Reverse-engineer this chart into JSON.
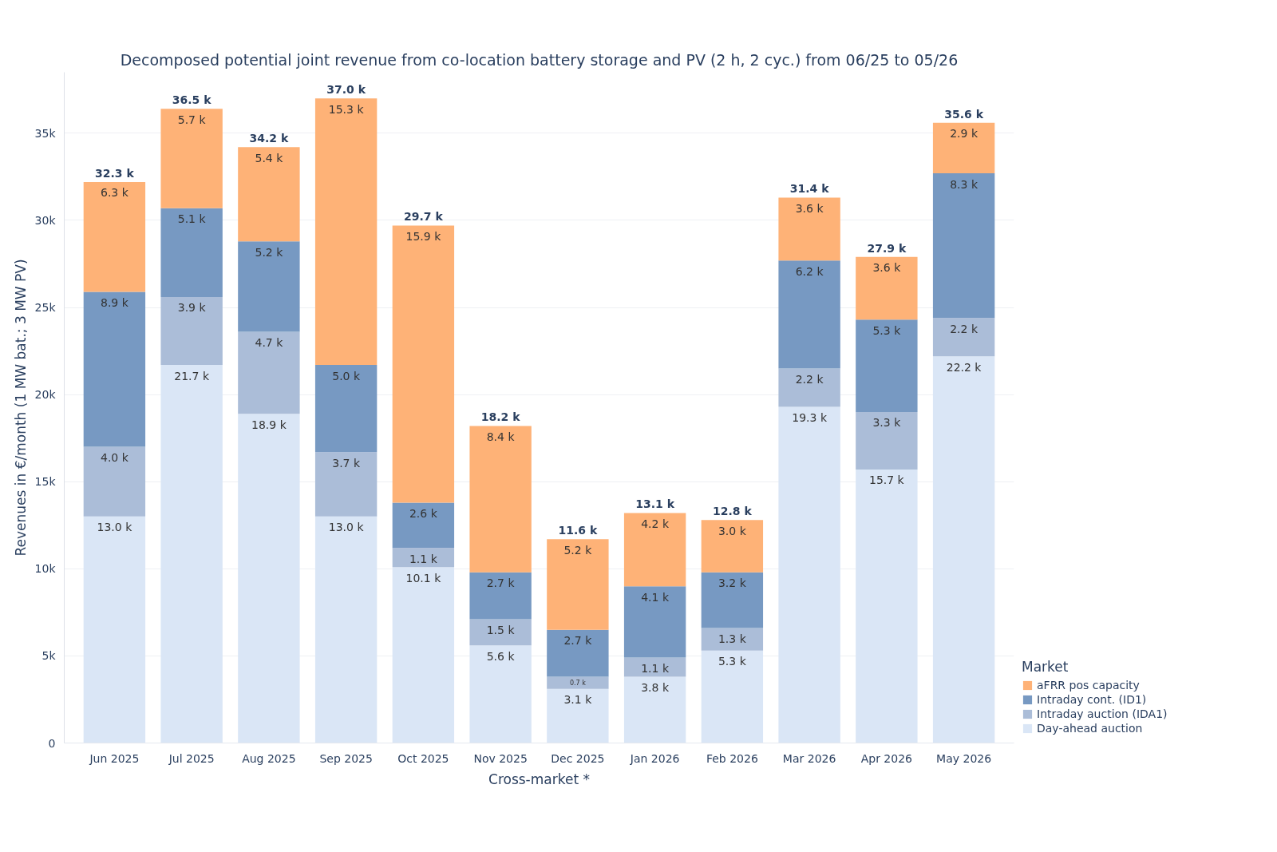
{
  "chart_data": {
    "type": "bar",
    "stacked": true,
    "title": "Decomposed potential joint revenue from co-location battery storage and PV (2 h, 2 cyc.) from 06/25 to 05/26",
    "xlabel": "Cross-market *",
    "ylabel": "Revenues in €/month (1 MW bat.; 3 MW PV)",
    "legend_title": "Market",
    "categories": [
      "Jun 2025",
      "Jul 2025",
      "Aug 2025",
      "Sep 2025",
      "Oct 2025",
      "Nov 2025",
      "Dec 2025",
      "Jan 2026",
      "Feb 2026",
      "Mar 2026",
      "Apr 2026",
      "May 2026"
    ],
    "series": [
      {
        "name": "Day-ahead auction",
        "color": "#dae6f6",
        "values": [
          13000,
          21700,
          18900,
          13000,
          10100,
          5600,
          3100,
          3800,
          5300,
          19300,
          15700,
          22200
        ],
        "value_labels": [
          "13.0 k",
          "21.7 k",
          "18.9 k",
          "13.0 k",
          "10.1 k",
          "5.6 k",
          "3.1 k",
          "3.8 k",
          "5.3 k",
          "19.3 k",
          "15.7 k",
          "22.2 k"
        ]
      },
      {
        "name": "Intraday auction (IDA1)",
        "color": "#abbdd8",
        "values": [
          4000,
          3900,
          4700,
          3700,
          1100,
          1500,
          700,
          1100,
          1300,
          2200,
          3300,
          2200
        ],
        "value_labels": [
          "4.0 k",
          "3.9 k",
          "4.7 k",
          "3.7 k",
          "1.1 k",
          "1.5 k",
          "0.7 k",
          "1.1 k",
          "1.3 k",
          "2.2 k",
          "3.3 k",
          "2.2 k"
        ]
      },
      {
        "name": "Intraday cont. (ID1)",
        "color": "#7799c2",
        "values": [
          8900,
          5100,
          5200,
          5000,
          2600,
          2700,
          2700,
          4100,
          3200,
          6200,
          5300,
          8300
        ],
        "value_labels": [
          "8.9 k",
          "5.1 k",
          "5.2 k",
          "5.0 k",
          "2.6 k",
          "2.7 k",
          "2.7 k",
          "4.1 k",
          "3.2 k",
          "6.2 k",
          "5.3 k",
          "8.3 k"
        ]
      },
      {
        "name": "aFRR pos capacity",
        "color": "#feb277",
        "values": [
          6300,
          5700,
          5400,
          15300,
          15900,
          8400,
          5200,
          4200,
          3000,
          3600,
          3600,
          2900
        ],
        "value_labels": [
          "6.3 k",
          "5.7 k",
          "5.4 k",
          "15.3 k",
          "15.9 k",
          "8.4 k",
          "5.2 k",
          "4.2 k",
          "3.0 k",
          "3.6 k",
          "3.6 k",
          "2.9 k"
        ]
      }
    ],
    "totals": [
      "32.3 k",
      "36.5 k",
      "34.2 k",
      "37.0 k",
      "29.7 k",
      "18.2 k",
      "11.6 k",
      "13.1 k",
      "12.8 k",
      "31.4 k",
      "27.9 k",
      "35.6 k"
    ],
    "ylim": [
      0,
      38500
    ],
    "yticks": [
      0,
      {
        "value": 5000,
        "label": "5k"
      },
      {
        "value": 10000,
        "label": "10k"
      },
      {
        "value": 15000,
        "label": "15k"
      },
      {
        "value": 20000,
        "label": "20k"
      },
      {
        "value": 25000,
        "label": "25k"
      },
      {
        "value": 30000,
        "label": "30k"
      },
      {
        "value": 35000,
        "label": "35k"
      }
    ],
    "grid": "y",
    "legend": "bottom right"
  }
}
